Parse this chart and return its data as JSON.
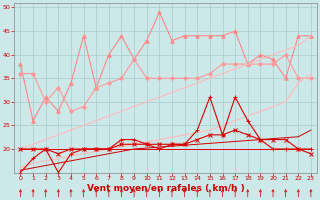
{
  "x": [
    0,
    1,
    2,
    3,
    4,
    5,
    6,
    7,
    8,
    9,
    10,
    11,
    12,
    13,
    14,
    15,
    16,
    17,
    18,
    19,
    20,
    21,
    22,
    23
  ],
  "series": [
    {
      "name": "rafales_top",
      "color": "#ff8888",
      "linewidth": 0.8,
      "marker": "^",
      "markersize": 2.5,
      "values": [
        38,
        26,
        31,
        28,
        34,
        44,
        33,
        40,
        44,
        39,
        43,
        49,
        43,
        44,
        44,
        44,
        44,
        45,
        38,
        40,
        39,
        35,
        44,
        44
      ]
    },
    {
      "name": "rafales_mid",
      "color": "#ff9999",
      "linewidth": 0.8,
      "marker": "D",
      "markersize": 2.0,
      "values": [
        36,
        36,
        30,
        33,
        28,
        29,
        33,
        34,
        35,
        39,
        35,
        35,
        35,
        35,
        35,
        36,
        38,
        38,
        38,
        38,
        38,
        40,
        35,
        35
      ]
    },
    {
      "name": "trend_upper",
      "color": "#ffbbbb",
      "linewidth": 0.8,
      "marker": null,
      "markersize": 0,
      "values": [
        20,
        21,
        22,
        23,
        24,
        25,
        26,
        27,
        28,
        29,
        30,
        31,
        32,
        33,
        34,
        35,
        36,
        37,
        38,
        39,
        40,
        41,
        42,
        44
      ]
    },
    {
      "name": "trend_lower",
      "color": "#ffbbbb",
      "linewidth": 0.8,
      "marker": null,
      "markersize": 0,
      "values": [
        16,
        17,
        17.5,
        18,
        18.5,
        19,
        19.5,
        20,
        20.5,
        21,
        21.5,
        22,
        22.5,
        23,
        23.5,
        24,
        25,
        26,
        27,
        28,
        29,
        30,
        34,
        36
      ]
    },
    {
      "name": "vent_moyen_spiky",
      "color": "#dd0000",
      "linewidth": 0.8,
      "marker": "+",
      "markersize": 3,
      "values": [
        15,
        18,
        20,
        15,
        19,
        20,
        20,
        20,
        22,
        22,
        21,
        20,
        21,
        21,
        24,
        31,
        23,
        31,
        26,
        22,
        20,
        20,
        20,
        20
      ]
    },
    {
      "name": "vent_moyen_smooth",
      "color": "#dd0000",
      "linewidth": 0.8,
      "marker": "x",
      "markersize": 2.5,
      "values": [
        20,
        20,
        20,
        19,
        20,
        20,
        20,
        20,
        21,
        21,
        21,
        21,
        21,
        21,
        22,
        23,
        23,
        24,
        23,
        22,
        22,
        22,
        20,
        19
      ]
    },
    {
      "name": "vent_flat",
      "color": "#dd0000",
      "linewidth": 0.7,
      "marker": null,
      "markersize": 0,
      "values": [
        20,
        20,
        20,
        20,
        20,
        20,
        20,
        20,
        20,
        20,
        20,
        20,
        20,
        20,
        20,
        20,
        20,
        20,
        20,
        20,
        20,
        20,
        20,
        20
      ]
    },
    {
      "name": "vent_trend",
      "color": "#cc0000",
      "linewidth": 0.7,
      "marker": null,
      "markersize": 0,
      "values": [
        15.5,
        16,
        16.5,
        17,
        17.5,
        18,
        18.5,
        19,
        19.5,
        20,
        20.2,
        20.4,
        20.6,
        20.8,
        21,
        21.2,
        21.4,
        21.6,
        21.8,
        22,
        22.2,
        22.4,
        22.6,
        24
      ]
    }
  ],
  "xlim": [
    -0.5,
    23.5
  ],
  "ylim": [
    15,
    51
  ],
  "yticks": [
    20,
    25,
    30,
    35,
    40,
    45,
    50
  ],
  "xticks": [
    0,
    1,
    2,
    3,
    4,
    5,
    6,
    7,
    8,
    9,
    10,
    11,
    12,
    13,
    14,
    15,
    16,
    17,
    18,
    19,
    20,
    21,
    22,
    23
  ],
  "xlabel": "Vent moyen/en rafales ( km/h )",
  "background_color": "#cce8e8",
  "grid_color": "#aacccc",
  "tick_color": "#cc0000",
  "label_color": "#cc0000",
  "spine_color": "#888888"
}
